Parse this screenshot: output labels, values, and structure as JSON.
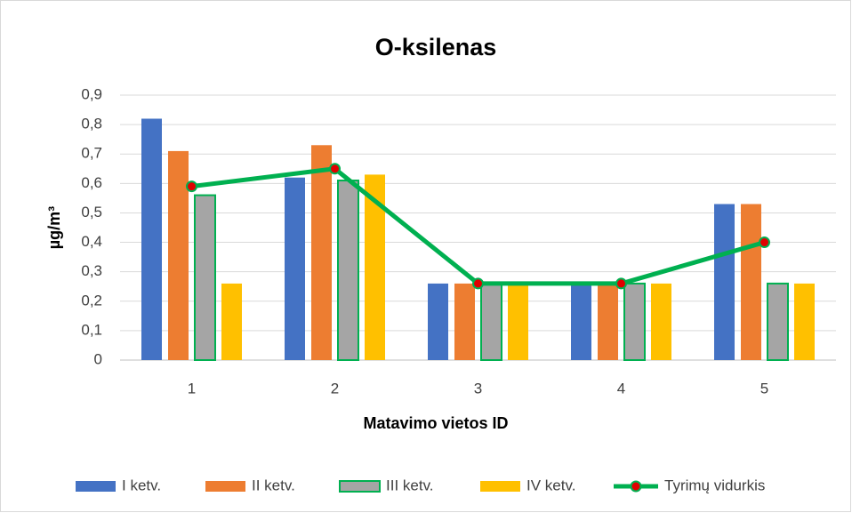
{
  "chart_data": {
    "type": "bar",
    "title": "O-ksilenas",
    "x_label": "Matavimo vietos ID",
    "y_label": "µg/m³",
    "categories": [
      "1",
      "2",
      "3",
      "4",
      "5"
    ],
    "series": [
      {
        "name": "I ketv.",
        "color": "#4472c4",
        "values": [
          0.82,
          0.62,
          0.26,
          0.26,
          0.53
        ]
      },
      {
        "name": "II ketv.",
        "color": "#ed7d31",
        "values": [
          0.71,
          0.73,
          0.26,
          0.26,
          0.53
        ]
      },
      {
        "name": "III ketv.",
        "color": "#a5a5a5",
        "edgecolor": "#00b050",
        "values": [
          0.56,
          0.61,
          0.26,
          0.26,
          0.26
        ]
      },
      {
        "name": "IV ketv.",
        "color": "#ffc000",
        "values": [
          0.26,
          0.63,
          0.26,
          0.26,
          0.26
        ]
      },
      {
        "name": "Tyrimų vidurkis",
        "type": "line",
        "color": "#00b050",
        "marker_color": "#e00000",
        "values": [
          0.59,
          0.65,
          0.26,
          0.26,
          0.4
        ]
      }
    ],
    "ylim": [
      0,
      0.9
    ],
    "yticks": [
      0,
      {
        "value": 0.1,
        "label": "0,1"
      },
      {
        "value": 0.2,
        "label": "0,2"
      },
      {
        "value": 0.3,
        "label": "0,3"
      },
      {
        "value": 0.4,
        "label": "0,4"
      },
      {
        "value": 0.5,
        "label": "0,5"
      },
      {
        "value": 0.6,
        "label": "0,6"
      },
      {
        "value": 0.7,
        "label": "0,7"
      },
      {
        "value": 0.8,
        "label": "0,8"
      },
      {
        "value": 0.9,
        "label": "0,9"
      }
    ],
    "grid": true,
    "legend": "bottom"
  }
}
